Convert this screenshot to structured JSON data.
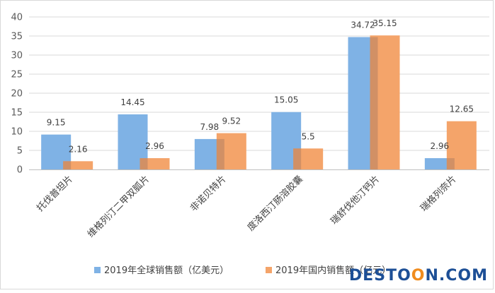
{
  "chart_data": {
    "type": "bar",
    "categories": [
      "托伐普坦片",
      "维格列汀二甲双胍片",
      "非诺贝特片",
      "度洛西汀肠溶胶囊",
      "瑞舒伐他汀钙片",
      "瑞格列奈片"
    ],
    "series": [
      {
        "name": "2019年全球销售额（亿美元）",
        "values": [
          9.15,
          14.45,
          7.98,
          15.05,
          34.72,
          2.96
        ],
        "color": "#7fb2e5"
      },
      {
        "name": "2019年国内销售额（亿元）",
        "values": [
          2.16,
          2.96,
          9.52,
          5.5,
          35.15,
          12.65
        ],
        "color": "#f4a46a"
      }
    ],
    "value_labels": [
      [
        "9.15",
        "14.45",
        "7.98",
        "15.05",
        "34.72",
        "2.96"
      ],
      [
        "2.16",
        "2.96",
        "9.52",
        "5.5",
        "35.15",
        "12.65"
      ]
    ],
    "yticks": [
      "0",
      "5",
      "10",
      "15",
      "20",
      "25",
      "30",
      "35",
      "40"
    ],
    "ylim": [
      0,
      40
    ],
    "grid": true,
    "legend_position": "bottom",
    "title": "",
    "xlabel": "",
    "ylabel": ""
  },
  "watermark": {
    "part1": "DESTO",
    "part2": "O",
    "part3": "N",
    "part4": ".COM"
  }
}
